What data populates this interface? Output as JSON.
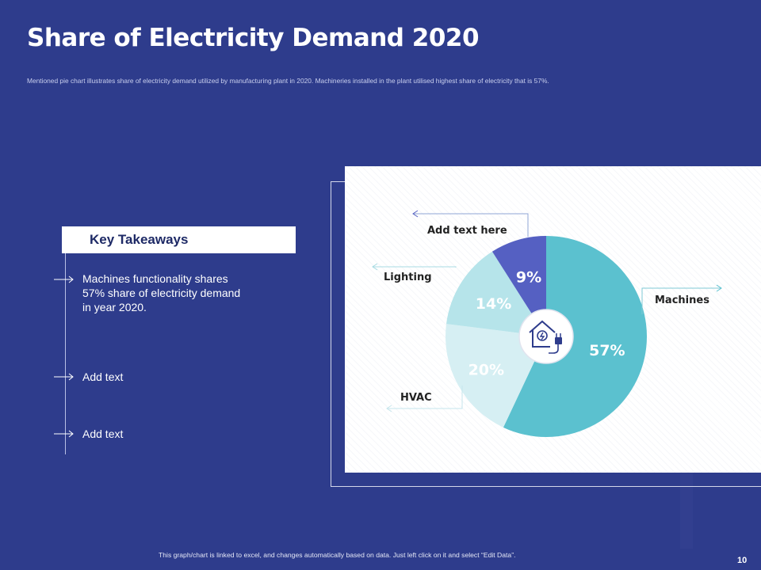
{
  "slide": {
    "title": "Share of Electricity Demand 2020",
    "subtitle": "Mentioned pie chart illustrates share of electricity demand utilized by manufacturing plant in 2020. Machineries installed in the plant utilised highest share of electricity that is 57%.",
    "footer_note": "This graph/chart is linked to excel, and changes automatically based on data. Just left click on it and select “Edit Data”.",
    "page_number": "10"
  },
  "takeaways": {
    "heading": "Key Takeaways",
    "items": [
      "Machines functionality shares 57% share of electricity demand in year 2020.",
      "Add text",
      "Add text"
    ]
  },
  "chart_labels": {
    "machines": "Machines",
    "hvac": "HVAC",
    "lighting": "Lighting",
    "other": "Add text here"
  },
  "colors": {
    "background": "#2e3c8c",
    "machines": "#5bc1cf",
    "hvac": "#d6eff3",
    "lighting": "#b6e4ea",
    "other": "#5560c2"
  },
  "chart_data": {
    "type": "pie",
    "title": "Share of Electricity Demand 2020",
    "series": [
      {
        "name": "Machines",
        "value": 57,
        "label": "57%"
      },
      {
        "name": "HVAC",
        "value": 20,
        "label": "20%"
      },
      {
        "name": "Lighting",
        "value": 14,
        "label": "14%"
      },
      {
        "name": "Add text here",
        "value": 9,
        "label": "9%"
      }
    ],
    "center_icon": "smart-home-plug-icon"
  }
}
